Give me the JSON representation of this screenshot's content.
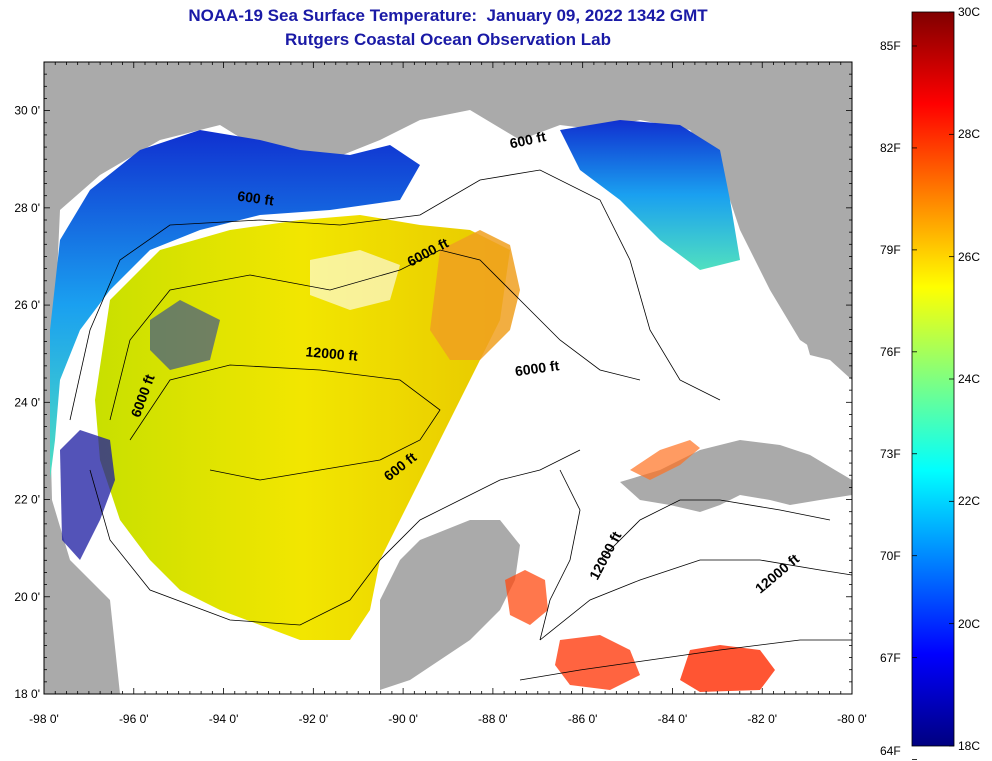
{
  "title": "NOAA-19 Sea Surface Temperature:  January 09, 2022 1342 GMT",
  "subtitle": "Rutgers Coastal Ocean Observation Lab",
  "map": {
    "lon_range": [
      -98,
      -80
    ],
    "lat_range": [
      18,
      31
    ],
    "x_ticks": [
      "-98 0'",
      "-96 0'",
      "-94 0'",
      "-92 0'",
      "-90 0'",
      "-88 0'",
      "-86 0'",
      "-84 0'",
      "-82 0'",
      "-80 0'"
    ],
    "y_ticks": [
      "30 0'",
      "28 0'",
      "26 0'",
      "24 0'",
      "22 0'",
      "20 0'",
      "18 0'"
    ],
    "contour_labels": [
      {
        "text": "600 ft",
        "lon": -93.3,
        "lat": 28.1,
        "angle": 8
      },
      {
        "text": "600 ft",
        "lon": -87.2,
        "lat": 29.3,
        "angle": -12
      },
      {
        "text": "6000 ft",
        "lon": -89.4,
        "lat": 27.0,
        "angle": -28
      },
      {
        "text": "12000 ft",
        "lon": -91.6,
        "lat": 24.9,
        "angle": 5
      },
      {
        "text": "6000 ft",
        "lon": -87.0,
        "lat": 24.6,
        "angle": -8
      },
      {
        "text": "6000 ft",
        "lon": -95.7,
        "lat": 24.1,
        "angle": -70
      },
      {
        "text": "600 ft",
        "lon": -90.0,
        "lat": 22.6,
        "angle": -38
      },
      {
        "text": "12000 ft",
        "lon": -85.4,
        "lat": 20.8,
        "angle": -62
      },
      {
        "text": "12000 ft",
        "lon": -81.6,
        "lat": 20.4,
        "angle": -40
      }
    ]
  },
  "colorbar": {
    "fahrenheit_labels": [
      "85F",
      "82F",
      "79F",
      "76F",
      "73F",
      "70F",
      "67F",
      "64F"
    ],
    "celsius_labels": [
      "30C",
      "28C",
      "26C",
      "24C",
      "22C",
      "20C",
      "18C"
    ],
    "c_min": 18,
    "c_max": 30,
    "colors": [
      "#000080",
      "#0000ff",
      "#0080ff",
      "#00ffff",
      "#80ff80",
      "#ffff00",
      "#ff8000",
      "#ff0000",
      "#800000"
    ]
  },
  "colors": {
    "land": "#aaaaaa",
    "cloud": "#ffffff",
    "title": "#1a1aa6"
  }
}
